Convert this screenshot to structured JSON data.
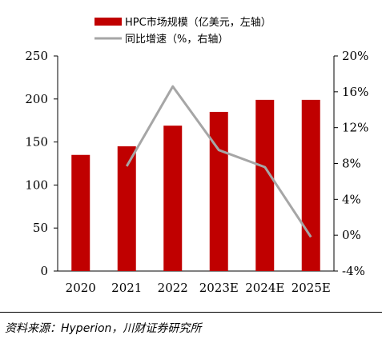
{
  "chart_data": {
    "type": "bar",
    "categories": [
      "2020",
      "2021",
      "2022",
      "2023E",
      "2024E",
      "2025E"
    ],
    "series": [
      {
        "name": "HPC市场规模（亿美元，左轴）",
        "type": "bar",
        "axis": "left",
        "color": "#c00000",
        "values": [
          135,
          145,
          169,
          185,
          199,
          199
        ]
      },
      {
        "name": "同比增速（%，右轴）",
        "type": "line",
        "axis": "right",
        "color": "#a6a6a6",
        "values": [
          null,
          7.7,
          16.6,
          9.5,
          7.6,
          -0.2
        ]
      }
    ],
    "y_left": {
      "ylim": [
        0,
        250
      ],
      "ticks": [
        "0",
        "50",
        "100",
        "150",
        "200",
        "250"
      ],
      "tick_values": [
        0,
        50,
        100,
        150,
        200,
        250
      ]
    },
    "y_right": {
      "ylim": [
        -4,
        20
      ],
      "ticks": [
        "-4%",
        "0%",
        "4%",
        "8%",
        "12%",
        "16%",
        "20%"
      ],
      "tick_values": [
        -4,
        0,
        4,
        8,
        12,
        16,
        20
      ]
    },
    "legend_position": "top-center",
    "grid": false
  },
  "source": "资料来源：Hyperion，川财证券研究所"
}
